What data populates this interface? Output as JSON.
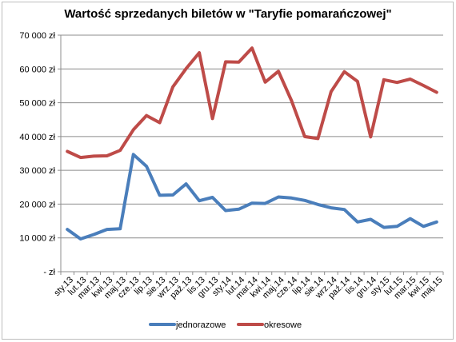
{
  "chart_data": {
    "type": "line",
    "title": "Wartość sprzedanych biletów w \"Taryfie pomarańczowej\"",
    "xlabel": "",
    "ylabel": "",
    "ylim": [
      0,
      70000
    ],
    "y_ticks": [
      0,
      10000,
      20000,
      30000,
      40000,
      50000,
      60000,
      70000
    ],
    "y_tick_labels": [
      "- zł",
      "10 000 zł",
      "20 000 zł",
      "30 000 zł",
      "40 000 zł",
      "50 000 zł",
      "60 000 zł",
      "70 000 zł"
    ],
    "grid": "horizontal",
    "legend": "bottom",
    "categories": [
      "sty.13",
      "lut.13",
      "mar.13",
      "kwi.13",
      "maj.13",
      "cze.13",
      "lip.13",
      "sie.13",
      "wrz.13",
      "paź.13",
      "lis.13",
      "gru.13",
      "sty.14",
      "lut.14",
      "mar.14",
      "kwi.14",
      "maj.14",
      "cze.14",
      "lip.14",
      "sie.14",
      "wrz.14",
      "paź.14",
      "lis.14",
      "gru.14",
      "sty.15",
      "lut.15",
      "mar.15",
      "kwi.15",
      "maj.15"
    ],
    "series": [
      {
        "name": "jednorazowe",
        "color": "#4a7ebb",
        "values": [
          12500,
          9700,
          11000,
          12500,
          12700,
          34700,
          31200,
          22600,
          22700,
          26000,
          21000,
          22000,
          18100,
          18500,
          20300,
          20200,
          22100,
          21800,
          21100,
          19900,
          18900,
          18400,
          14700,
          15500,
          13100,
          13400,
          15700,
          13400,
          14700
        ]
      },
      {
        "name": "okresowe",
        "color": "#be4b48",
        "values": [
          35600,
          33800,
          34200,
          34300,
          35900,
          42000,
          46200,
          44100,
          54700,
          60100,
          64800,
          45300,
          62100,
          62000,
          66200,
          56100,
          59300,
          50600,
          40000,
          39400,
          53300,
          59200,
          56300,
          39900,
          56800,
          56000,
          57000,
          55100,
          53100
        ]
      }
    ]
  }
}
